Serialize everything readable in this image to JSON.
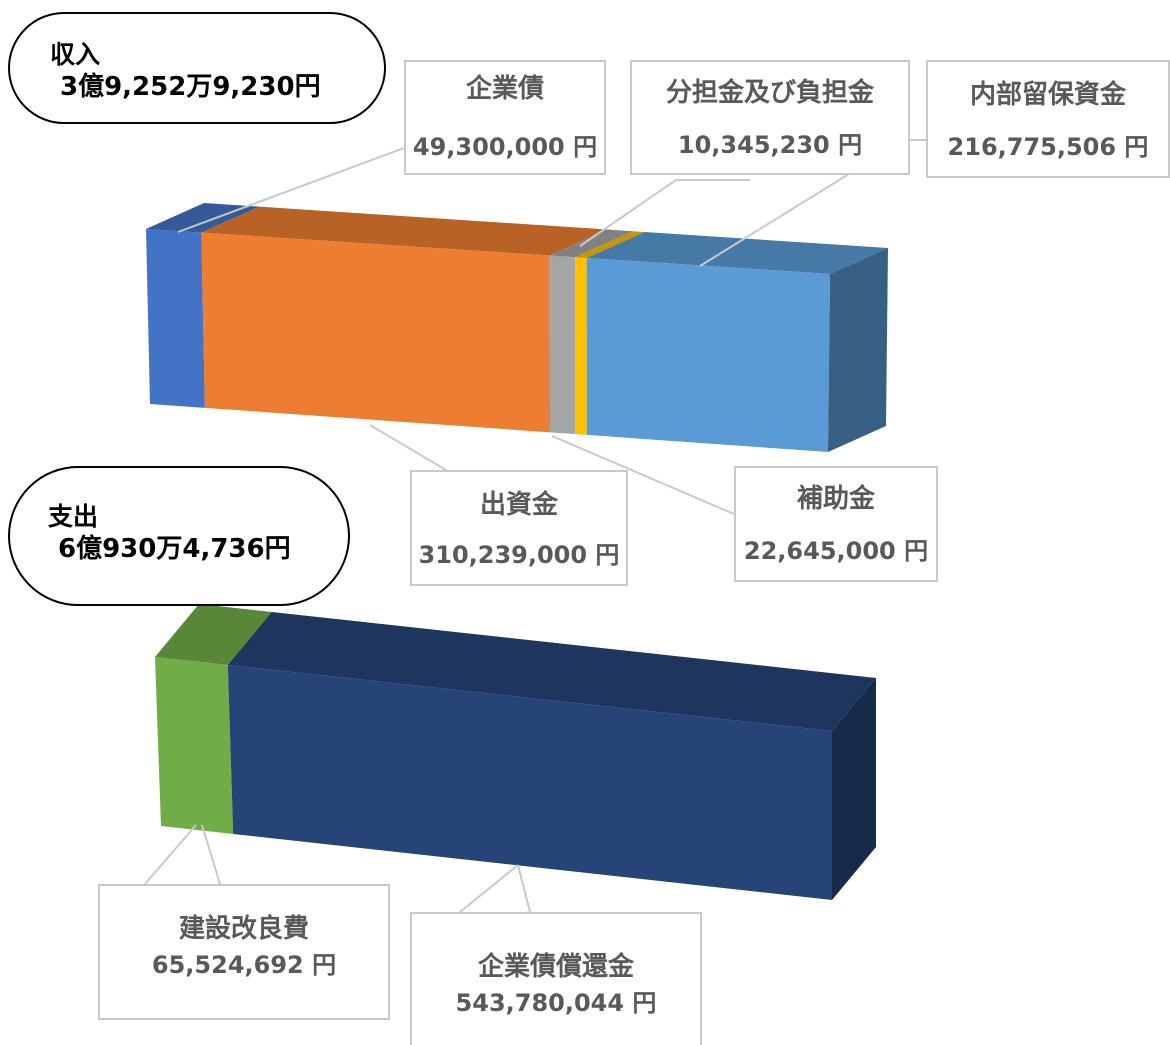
{
  "income": {
    "title": "収入",
    "total": "3億9,252万9,230円"
  },
  "expense": {
    "title": "支出",
    "total": "6億930万4,736円"
  },
  "chart_data": [
    {
      "type": "bar",
      "orientation": "horizontal-stacked-3d",
      "title": "収入",
      "unit": "円",
      "categories": [
        "収入"
      ],
      "series": [
        {
          "name": "企業債",
          "value": 49300000,
          "value_label": "49,300,000 円",
          "color": "#4472c4"
        },
        {
          "name": "出資金",
          "value": 310239000,
          "value_label": "310,239,000 円",
          "color": "#ed7d31"
        },
        {
          "name": "補助金",
          "value": 22645000,
          "value_label": "22,645,000 円",
          "color": "#a5a5a5"
        },
        {
          "name": "分担金及び負担金",
          "value": 10345230,
          "value_label": "10,345,230 円",
          "color": "#ffc000"
        },
        {
          "name": "内部留保資金",
          "value": 216775506,
          "value_label": "216,775,506 円",
          "color": "#5b9bd5"
        }
      ]
    },
    {
      "type": "bar",
      "orientation": "horizontal-stacked-3d",
      "title": "支出",
      "unit": "円",
      "categories": [
        "支出"
      ],
      "series": [
        {
          "name": "建設改良費",
          "value": 65524692,
          "value_label": "65,524,692 円",
          "color": "#70ad47"
        },
        {
          "name": "企業債償還金",
          "value": 543780044,
          "value_label": "543,780,044 円",
          "color": "#264478"
        }
      ]
    }
  ]
}
